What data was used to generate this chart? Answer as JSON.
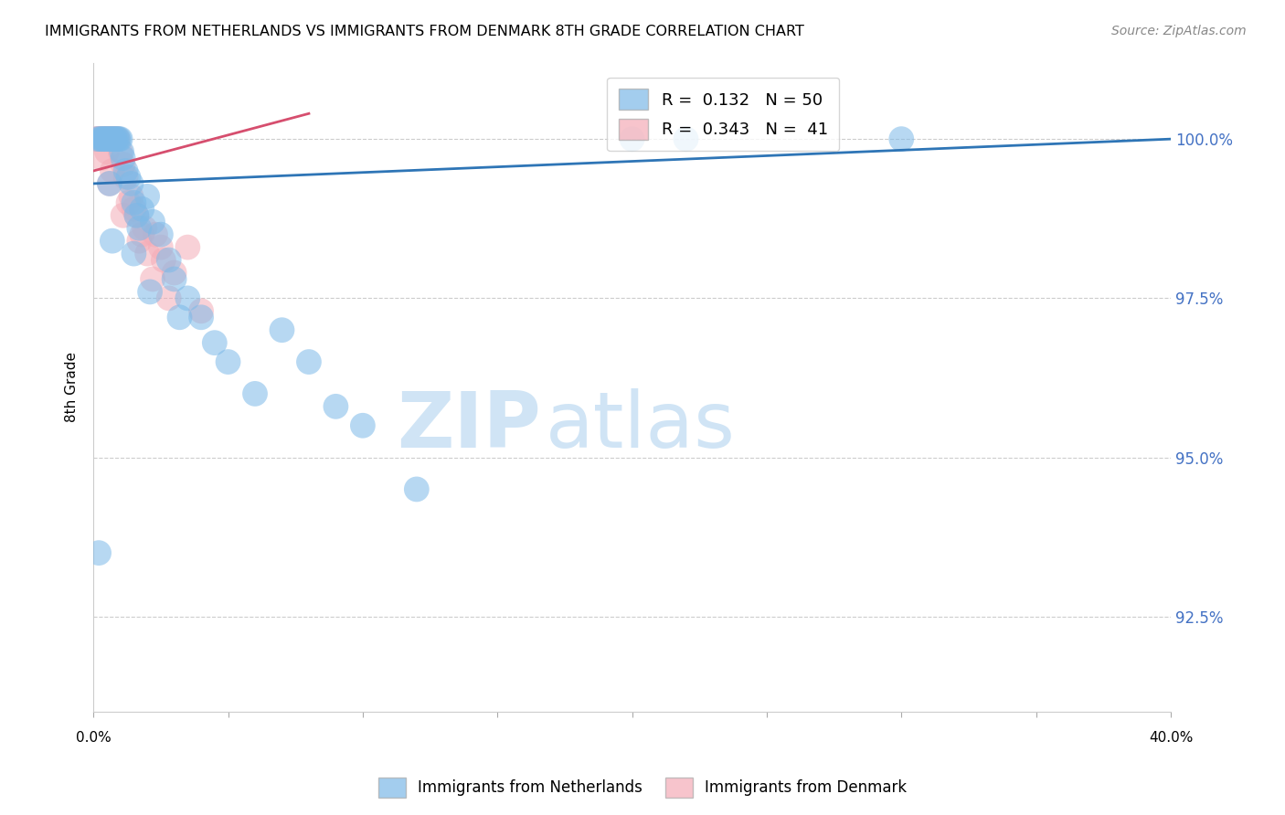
{
  "title": "IMMIGRANTS FROM NETHERLANDS VS IMMIGRANTS FROM DENMARK 8TH GRADE CORRELATION CHART",
  "source": "Source: ZipAtlas.com",
  "ylabel": "8th Grade",
  "y_ticks": [
    92.5,
    95.0,
    97.5,
    100.0
  ],
  "y_tick_labels": [
    "92.5%",
    "95.0%",
    "97.5%",
    "100.0%"
  ],
  "xlim": [
    0.0,
    40.0
  ],
  "ylim": [
    91.0,
    101.2
  ],
  "watermark_zip": "ZIP",
  "watermark_atlas": "atlas",
  "blue_color": "#7CB9E8",
  "pink_color": "#F4ACB7",
  "blue_line_color": "#2E75B6",
  "pink_line_color": "#D64E6E",
  "netherlands_x": [
    0.15,
    0.25,
    0.3,
    0.35,
    0.4,
    0.45,
    0.5,
    0.55,
    0.6,
    0.65,
    0.7,
    0.75,
    0.8,
    0.85,
    0.9,
    0.95,
    1.0,
    1.05,
    1.1,
    1.2,
    1.3,
    1.4,
    1.5,
    1.6,
    1.7,
    1.8,
    2.0,
    2.2,
    2.5,
    2.8,
    3.0,
    3.5,
    4.0,
    4.5,
    5.0,
    6.0,
    7.0,
    8.0,
    9.0,
    10.0,
    12.0,
    0.6,
    0.7,
    22.0,
    30.0,
    20.0,
    1.5,
    2.1,
    3.2,
    0.2
  ],
  "netherlands_y": [
    100.0,
    100.0,
    100.0,
    100.0,
    100.0,
    100.0,
    100.0,
    100.0,
    100.0,
    100.0,
    100.0,
    100.0,
    100.0,
    100.0,
    100.0,
    100.0,
    100.0,
    99.8,
    99.7,
    99.5,
    99.4,
    99.3,
    99.0,
    98.8,
    98.6,
    98.9,
    99.1,
    98.7,
    98.5,
    98.1,
    97.8,
    97.5,
    97.2,
    96.8,
    96.5,
    96.0,
    97.0,
    96.5,
    95.8,
    95.5,
    94.5,
    99.3,
    98.4,
    100.0,
    100.0,
    100.0,
    98.2,
    97.6,
    97.2,
    93.5
  ],
  "denmark_x": [
    0.1,
    0.15,
    0.2,
    0.25,
    0.3,
    0.35,
    0.4,
    0.45,
    0.5,
    0.55,
    0.6,
    0.65,
    0.7,
    0.75,
    0.8,
    0.85,
    0.9,
    1.0,
    1.1,
    1.2,
    1.4,
    1.6,
    1.8,
    2.0,
    2.3,
    2.6,
    3.0,
    3.5,
    4.0,
    0.5,
    0.7,
    1.3,
    1.5,
    2.5,
    1.9,
    0.3,
    0.6,
    1.1,
    1.7,
    2.2,
    2.8
  ],
  "denmark_y": [
    100.0,
    100.0,
    100.0,
    100.0,
    100.0,
    100.0,
    100.0,
    100.0,
    100.0,
    100.0,
    100.0,
    100.0,
    100.0,
    100.0,
    100.0,
    100.0,
    100.0,
    99.8,
    99.6,
    99.4,
    99.1,
    98.8,
    98.5,
    98.2,
    98.5,
    98.1,
    97.9,
    98.3,
    97.3,
    99.8,
    99.5,
    99.0,
    98.9,
    98.3,
    98.6,
    99.7,
    99.3,
    98.8,
    98.4,
    97.8,
    97.5
  ],
  "blue_line_x": [
    0.0,
    40.0
  ],
  "blue_line_y": [
    99.3,
    100.0
  ],
  "pink_line_x": [
    0.0,
    8.0
  ],
  "pink_line_y": [
    99.5,
    100.4
  ],
  "legend_labels": [
    "R =  0.132   N = 50",
    "R =  0.343   N =  41"
  ],
  "bottom_legend_labels": [
    "Immigrants from Netherlands",
    "Immigrants from Denmark"
  ]
}
